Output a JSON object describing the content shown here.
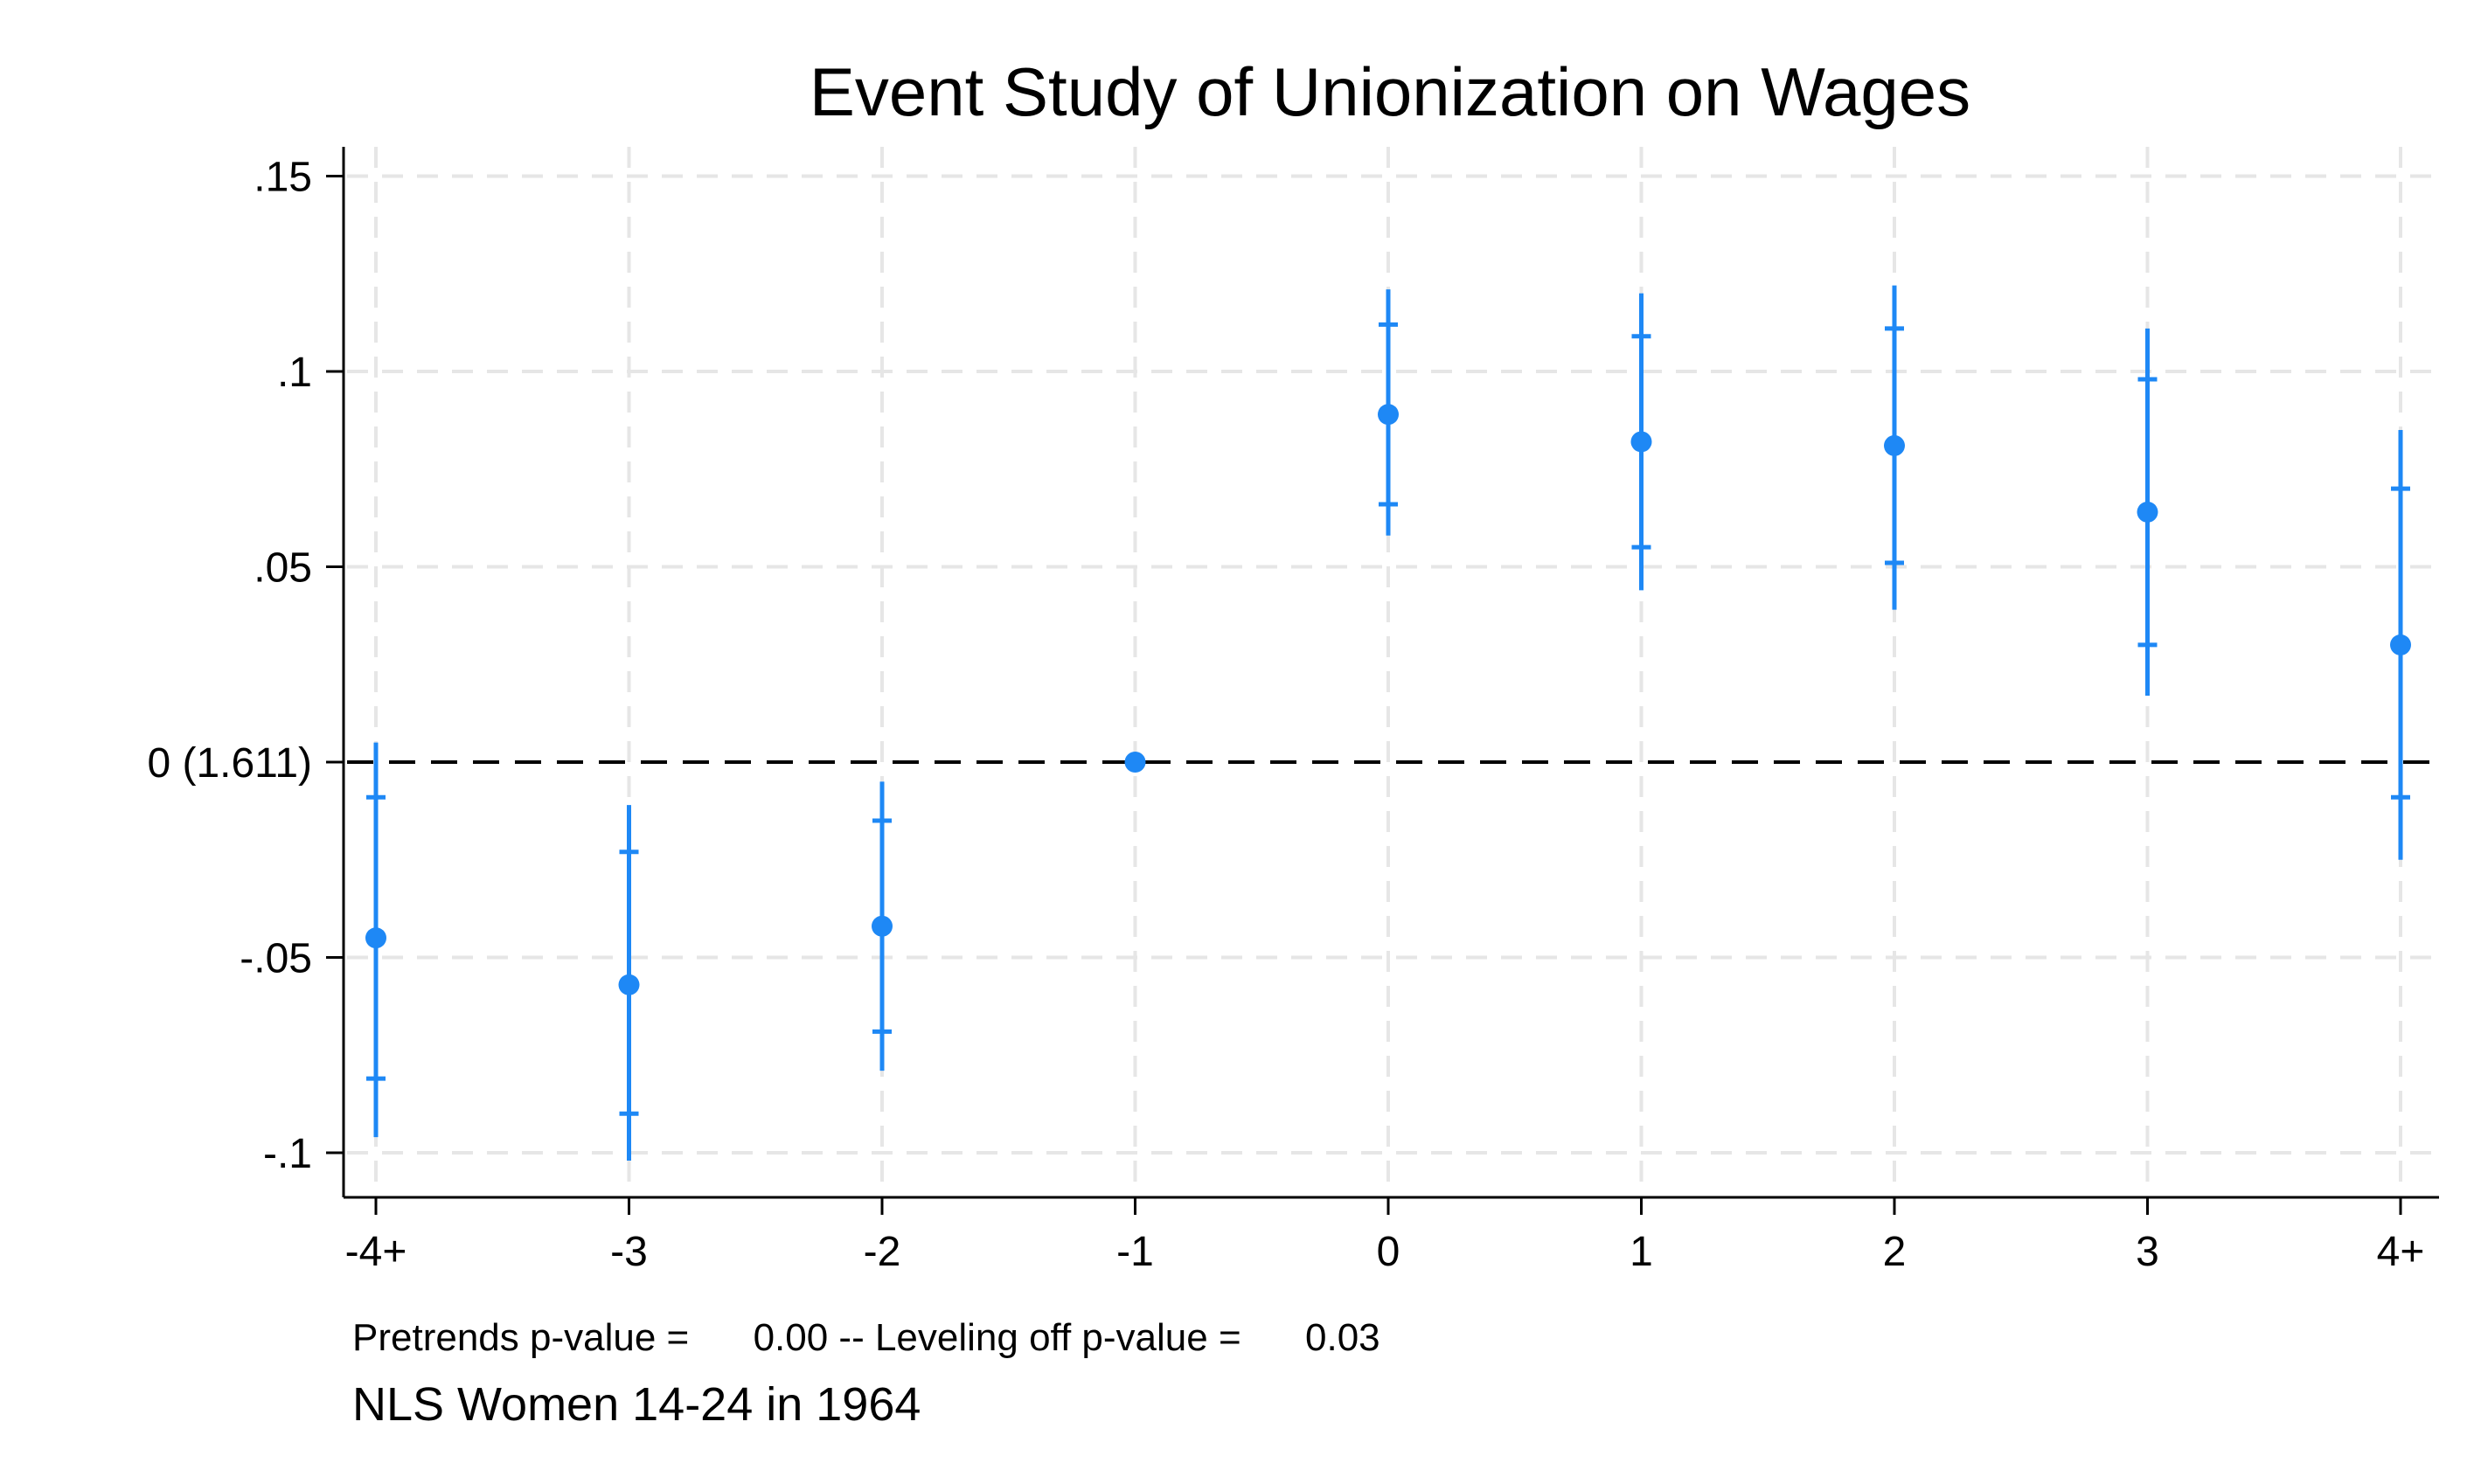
{
  "chart_data": {
    "type": "scatter",
    "title": "Event Study of Unionization on Wages",
    "xlabel": "",
    "ylabel": "",
    "categories": [
      "-4+",
      "-3",
      "-2",
      "-1",
      "0",
      "1",
      "2",
      "3",
      "4+"
    ],
    "y_ticks": [
      {
        "value": 0.15,
        "label": ".15"
      },
      {
        "value": 0.1,
        "label": ".1"
      },
      {
        "value": 0.05,
        "label": ".05"
      },
      {
        "value": 0,
        "label": "0 (1.611)"
      },
      {
        "value": -0.05,
        "label": "-.05"
      },
      {
        "value": -0.1,
        "label": "-.1"
      }
    ],
    "ylim": [
      -0.105,
      0.157
    ],
    "grid": true,
    "reference_line": 0,
    "series": [
      {
        "name": "",
        "values": [
          -0.045,
          -0.057,
          -0.042,
          0.0,
          0.089,
          0.082,
          0.081,
          0.064,
          0.03
        ],
        "ci90_low": [
          -0.081,
          -0.09,
          -0.069,
          0.0,
          0.066,
          0.055,
          0.051,
          0.03,
          -0.009
        ],
        "ci90_high": [
          -0.009,
          -0.023,
          -0.015,
          0.0,
          0.112,
          0.109,
          0.111,
          0.098,
          0.07
        ],
        "ci95_low": [
          -0.096,
          -0.102,
          -0.079,
          0.0,
          0.058,
          0.044,
          0.039,
          0.017,
          -0.025
        ],
        "ci95_high": [
          0.005,
          -0.011,
          -0.005,
          0.0,
          0.121,
          0.12,
          0.122,
          0.111,
          0.085
        ]
      }
    ],
    "colors": {
      "points": "#1e88f5",
      "reference": "#000000",
      "grid": "#e6e6e6"
    },
    "note": "Pretrends p-value =      0.00 -- Leveling off p-value =      0.03",
    "caption": "NLS Women 14-24 in 1964"
  }
}
